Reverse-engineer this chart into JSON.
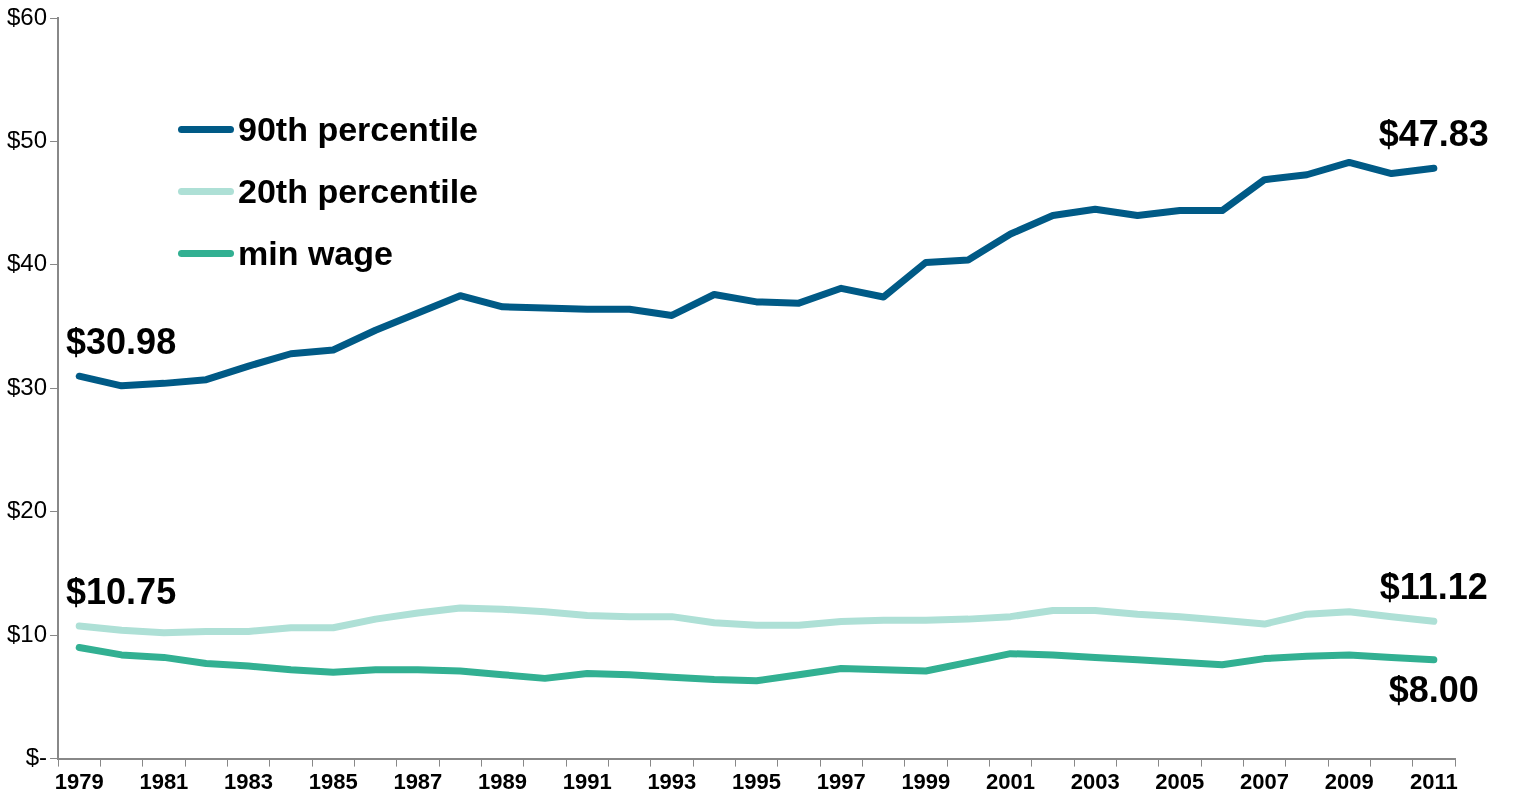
{
  "chart_data": {
    "type": "line",
    "categories": [
      "1979",
      null,
      "1981",
      null,
      "1983",
      null,
      "1985",
      null,
      "1987",
      null,
      "1989",
      null,
      "1991",
      null,
      "1993",
      null,
      "1995",
      null,
      "1997",
      null,
      "1999",
      null,
      "2001",
      null,
      "2003",
      null,
      "2005",
      null,
      "2007",
      null,
      "2009",
      null,
      "2011"
    ],
    "series": [
      {
        "name": "90th percentile",
        "color": "#005a86",
        "values": [
          30.98,
          30.2,
          30.4,
          30.7,
          31.8,
          32.8,
          33.1,
          34.7,
          36.1,
          37.5,
          36.6,
          36.5,
          36.4,
          36.4,
          35.9,
          37.6,
          37.0,
          36.9,
          38.1,
          37.4,
          40.2,
          40.4,
          42.5,
          44.0,
          44.5,
          44.0,
          44.4,
          44.4,
          46.9,
          47.3,
          48.3,
          47.4,
          47.83
        ]
      },
      {
        "name": "20th percentile",
        "color": "#aee0d6",
        "values": [
          10.75,
          10.4,
          10.2,
          10.3,
          10.3,
          10.6,
          10.6,
          11.3,
          11.8,
          12.2,
          12.1,
          11.9,
          11.6,
          11.5,
          11.5,
          11.0,
          10.8,
          10.8,
          11.1,
          11.2,
          11.2,
          11.3,
          11.5,
          12.0,
          12.0,
          11.7,
          11.5,
          11.2,
          10.9,
          11.7,
          11.9,
          11.5,
          11.12
        ]
      },
      {
        "name": "min wage",
        "color": "#32b092",
        "values": [
          9.0,
          8.4,
          8.2,
          7.7,
          7.5,
          7.2,
          7.0,
          7.2,
          7.2,
          7.1,
          6.8,
          6.5,
          6.9,
          6.8,
          6.6,
          6.4,
          6.3,
          6.8,
          7.3,
          7.2,
          7.1,
          7.8,
          8.5,
          8.4,
          8.2,
          8.0,
          7.8,
          7.6,
          8.1,
          8.3,
          8.4,
          8.2,
          8.0
        ]
      }
    ],
    "ylim": [
      0,
      60
    ],
    "yticks": [
      {
        "value": 0,
        "label": "$-"
      },
      {
        "value": 10,
        "label": "$10"
      },
      {
        "value": 20,
        "label": "$20"
      },
      {
        "value": 30,
        "label": "$30"
      },
      {
        "value": 40,
        "label": "$40"
      },
      {
        "value": 50,
        "label": "$50"
      },
      {
        "value": 60,
        "label": "$60"
      }
    ],
    "annotations": [
      {
        "text": "$30.98",
        "x": "1979",
        "y": 30.98
      },
      {
        "text": "$47.83",
        "x": "2011",
        "y": 47.83
      },
      {
        "text": "$10.75",
        "x": "1979",
        "y": 10.75
      },
      {
        "text": "$11.12",
        "x": "2011",
        "y": 11.12
      },
      {
        "text": "$8.00",
        "x": "2011",
        "y": 8.0
      }
    ],
    "grid": false,
    "legend": "top left",
    "marker": "none",
    "line_style": "solid"
  }
}
